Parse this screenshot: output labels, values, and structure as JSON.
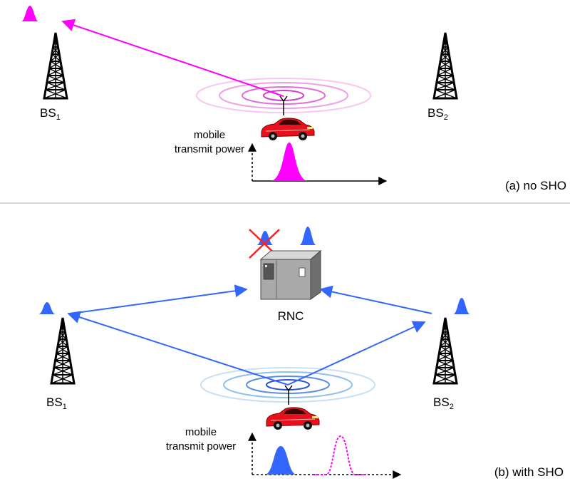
{
  "panel_a": {
    "bs1": {
      "main": "BS",
      "sub": "1"
    },
    "bs2": {
      "main": "BS",
      "sub": "2"
    },
    "power_label_1": "mobile",
    "power_label_2": "transmit power",
    "caption": "(a) no SHO"
  },
  "panel_b": {
    "rnc": "RNC",
    "bs1": {
      "main": "BS",
      "sub": "1"
    },
    "bs2": {
      "main": "BS",
      "sub": "2"
    },
    "power_label_1": "mobile",
    "power_label_2": "transmit power",
    "caption": "(b) with SHO"
  },
  "colors": {
    "magenta": "#ff00ff",
    "blue": "#3366ff",
    "car_red": "#e8101a",
    "cross_red": "#ff2020",
    "divider": "#c8c8c8"
  }
}
